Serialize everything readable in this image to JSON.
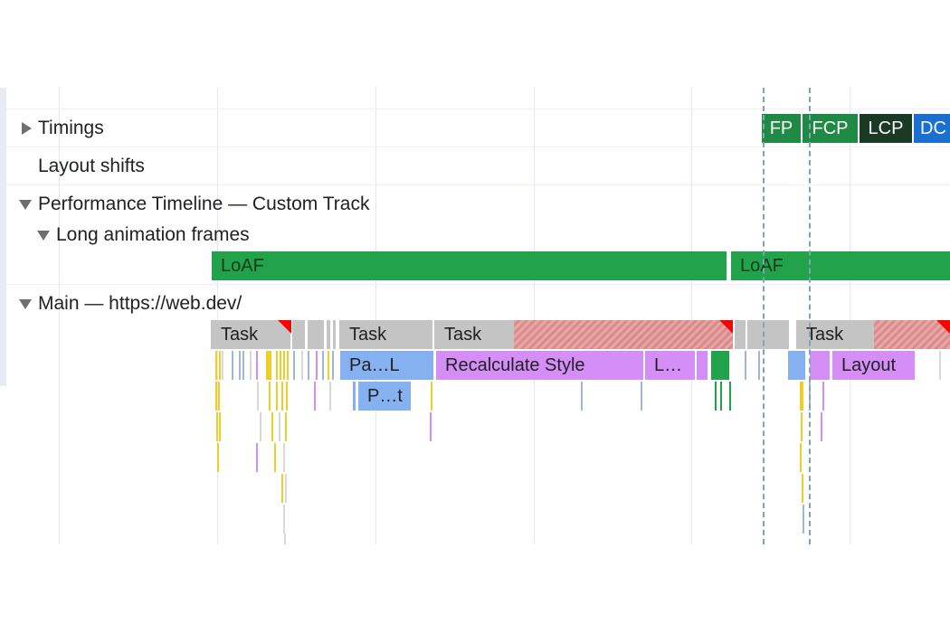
{
  "tracks": {
    "timings": "Timings",
    "layout_shifts": "Layout shifts",
    "custom_track": "Performance Timeline — Custom Track",
    "loaf_group": "Long animation frames",
    "main": "Main — https://web.dev/"
  },
  "timing_markers": [
    {
      "label": "FP",
      "color": "#1e8a44"
    },
    {
      "label": "FCP",
      "color": "#1e8a44"
    },
    {
      "label": "LCP",
      "color": "#1b3a24"
    },
    {
      "label": "DC",
      "color": "#1a6fd1"
    }
  ],
  "loaf_bars": [
    "LoAF",
    "LoAF"
  ],
  "tasks": [
    "Task",
    "Task",
    "Task",
    "Task"
  ],
  "events": {
    "parse_html_1": "Pa…L",
    "recalculate_style": "Recalculate Style",
    "layout_short": "L…",
    "layout": "Layout",
    "parse_html_2": "P…t"
  },
  "colors": {
    "loaf": "#21a24b",
    "task": "#c4c4c4",
    "parse": "#85b1f0",
    "style": "#d48ef5",
    "script": "#f0ce2a",
    "long_task_marker": "#ff0000"
  }
}
